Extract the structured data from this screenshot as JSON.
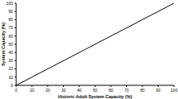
{
  "chart_data": {
    "type": "line",
    "x_label": "Historic Adult System Capacity (%)",
    "y_label": "System Capacity (%)",
    "x": [
      0,
      100
    ],
    "values": [
      0,
      100
    ],
    "color": "#000000",
    "xlim": [
      0,
      100
    ],
    "xticks": [
      0,
      10,
      20,
      30,
      40,
      50,
      60,
      70,
      80,
      90,
      100
    ],
    "ylim": [
      0,
      100
    ],
    "yticks": [
      0,
      10,
      20,
      30,
      40,
      50,
      60,
      70,
      80,
      90,
      100
    ],
    "grid": false
  }
}
